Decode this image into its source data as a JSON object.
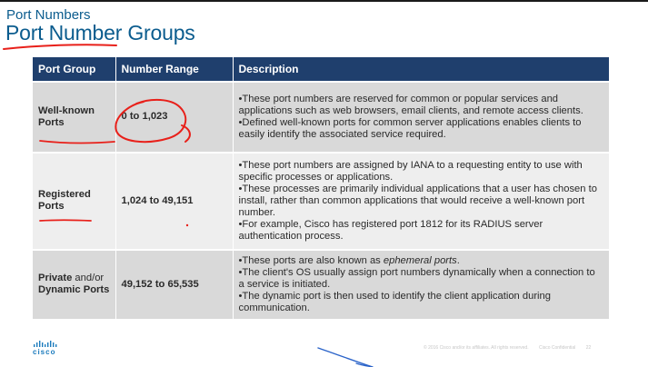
{
  "header": {
    "subtitle": "Port Numbers",
    "title": "Port Number Groups"
  },
  "table": {
    "columns": [
      "Port Group",
      "Number Range",
      "Description"
    ],
    "rows": [
      {
        "group": "Well-known Ports",
        "range": "0 to 1,023",
        "desc": [
          "•These port numbers are reserved for common or popular services and applications such as web browsers, email clients, and remote access clients.",
          "•Defined well-known ports for common server applications enables clients to easily identify the associated service required."
        ]
      },
      {
        "group": "Registered Ports",
        "range": "1,024 to 49,151",
        "desc": [
          "•These port numbers are assigned by IANA to a requesting entity to use with specific processes or applications.",
          "•These processes are primarily individual applications that a user has chosen to install, rather than common applications that would receive a well-known port number.",
          "•For example, Cisco has registered port 1812 for its RADIUS server authentication process."
        ]
      },
      {
        "group_bold1": "Private",
        "group_mid": " and/or",
        "group_bold2": "Dynamic Ports",
        "range": "49,152 to 65,535",
        "desc_prefix": "•These ports are also known as ",
        "desc_em": "ephemeral ports",
        "desc_suffix": ".",
        "desc": [
          "•The client's OS usually assign port numbers dynamically when a connection to a service is initiated.",
          "•The dynamic port is then used to identify the client application during communication."
        ]
      }
    ]
  },
  "footer": {
    "logo_text": "cisco",
    "copyright": "© 2016 Cisco and/or its affiliates. All rights reserved.",
    "confidential": "Cisco Confidential",
    "page": "22"
  },
  "colors": {
    "title_blue": "#0b5c8e",
    "header_navy": "#1f3f6d",
    "row_dark": "#d9d9d9",
    "row_light": "#eeeeee",
    "annotation_red": "#e8201a",
    "annotation_blue": "#2a63c9"
  }
}
